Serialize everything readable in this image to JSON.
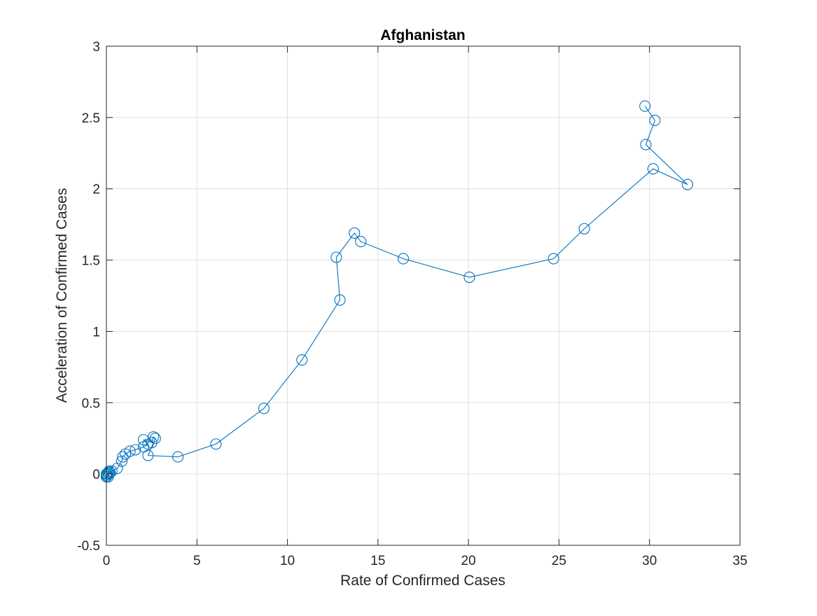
{
  "chart_data": {
    "type": "line",
    "title": "Afghanistan",
    "xlabel": "Rate of Confirmed Cases",
    "ylabel": "Acceleration of Confirmed Cases",
    "xlim": [
      0,
      35
    ],
    "ylim": [
      -0.5,
      3
    ],
    "xticks": [
      0,
      5,
      10,
      15,
      20,
      25,
      30,
      35
    ],
    "yticks": [
      -0.5,
      0,
      0.5,
      1,
      1.5,
      2,
      2.5,
      3
    ],
    "xtick_labels": [
      "0",
      "5",
      "10",
      "15",
      "20",
      "25",
      "30",
      "35"
    ],
    "ytick_labels": [
      "-0.5",
      "0",
      "0.5",
      "1",
      "1.5",
      "2",
      "2.5",
      "3"
    ],
    "grid": true,
    "legend": "none",
    "marker": "open-circle",
    "series": [
      {
        "color": "#0072BD",
        "points": [
          [
            0.0,
            0.0
          ],
          [
            0.0,
            -0.01
          ],
          [
            0.0,
            -0.02
          ],
          [
            0.05,
            0.0
          ],
          [
            0.1,
            0.01
          ],
          [
            0.1,
            -0.02
          ],
          [
            0.15,
            0.02
          ],
          [
            0.2,
            0.01
          ],
          [
            0.15,
            0.0
          ],
          [
            0.3,
            0.02
          ],
          [
            0.6,
            0.04
          ],
          [
            0.85,
            0.09
          ],
          [
            0.9,
            0.12
          ],
          [
            1.05,
            0.14
          ],
          [
            1.3,
            0.16
          ],
          [
            1.6,
            0.17
          ],
          [
            2.05,
            0.19
          ],
          [
            2.3,
            0.21
          ],
          [
            2.05,
            0.24
          ],
          [
            2.5,
            0.22
          ],
          [
            2.6,
            0.26
          ],
          [
            2.7,
            0.25
          ],
          [
            2.3,
            0.13
          ],
          [
            3.95,
            0.12
          ],
          [
            6.05,
            0.21
          ],
          [
            8.7,
            0.46
          ],
          [
            10.8,
            0.8
          ],
          [
            12.9,
            1.22
          ],
          [
            12.7,
            1.52
          ],
          [
            13.7,
            1.69
          ],
          [
            14.05,
            1.63
          ],
          [
            16.4,
            1.51
          ],
          [
            20.05,
            1.38
          ],
          [
            24.7,
            1.51
          ],
          [
            26.4,
            1.72
          ],
          [
            30.2,
            2.14
          ],
          [
            32.1,
            2.03
          ],
          [
            29.8,
            2.31
          ],
          [
            30.3,
            2.48
          ],
          [
            29.75,
            2.58
          ]
        ]
      }
    ]
  }
}
